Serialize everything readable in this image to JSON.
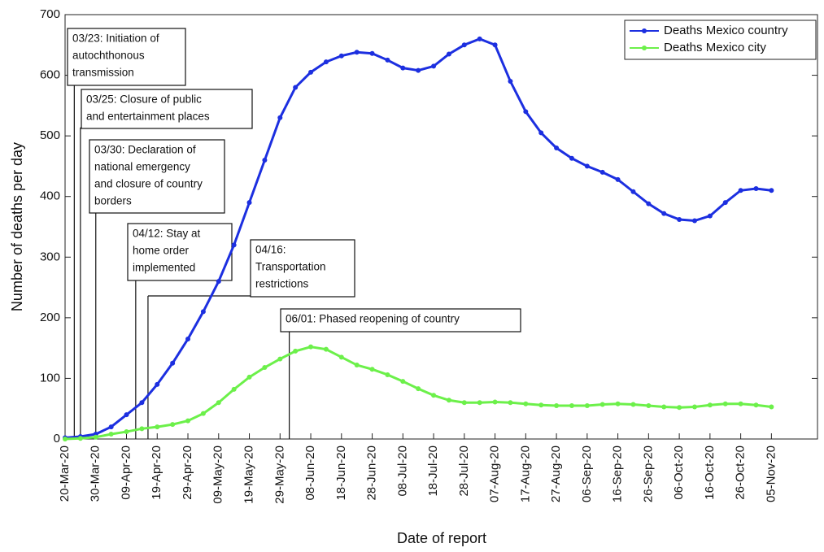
{
  "chart_data": {
    "type": "line",
    "x_label": "Date of report",
    "y_label": "Number of deaths per day",
    "x": [
      "2020-03-20",
      "2020-03-25",
      "2020-03-30",
      "2020-04-04",
      "2020-04-09",
      "2020-04-14",
      "2020-04-19",
      "2020-04-24",
      "2020-04-29",
      "2020-05-04",
      "2020-05-09",
      "2020-05-14",
      "2020-05-19",
      "2020-05-24",
      "2020-05-29",
      "2020-06-03",
      "2020-06-08",
      "2020-06-13",
      "2020-06-18",
      "2020-06-23",
      "2020-06-28",
      "2020-07-03",
      "2020-07-08",
      "2020-07-13",
      "2020-07-18",
      "2020-07-23",
      "2020-07-28",
      "2020-08-02",
      "2020-08-07",
      "2020-08-12",
      "2020-08-17",
      "2020-08-22",
      "2020-08-27",
      "2020-09-01",
      "2020-09-06",
      "2020-09-11",
      "2020-09-16",
      "2020-09-21",
      "2020-09-26",
      "2020-10-01",
      "2020-10-06",
      "2020-10-11",
      "2020-10-16",
      "2020-10-21",
      "2020-10-26",
      "2020-10-31",
      "2020-11-05"
    ],
    "series": [
      {
        "name": "Deaths Mexico country",
        "color": "#1c2fe0",
        "values": [
          2,
          4,
          8,
          20,
          40,
          60,
          90,
          125,
          165,
          210,
          260,
          320,
          390,
          460,
          530,
          580,
          605,
          622,
          632,
          638,
          636,
          625,
          612,
          608,
          615,
          635,
          650,
          660,
          650,
          590,
          540,
          505,
          480,
          463,
          450,
          440,
          428,
          408,
          388,
          372,
          362,
          360,
          368,
          390,
          410,
          413,
          410
        ]
      },
      {
        "name": "Deaths Mexico city",
        "color": "#6cf04a",
        "values": [
          0,
          1,
          3,
          8,
          12,
          17,
          20,
          24,
          30,
          42,
          60,
          82,
          102,
          118,
          132,
          145,
          152,
          148,
          135,
          122,
          115,
          106,
          95,
          83,
          72,
          64,
          60,
          60,
          61,
          60,
          58,
          56,
          55,
          55,
          55,
          57,
          58,
          57,
          55,
          53,
          52,
          53,
          56,
          58,
          58,
          56,
          53
        ]
      }
    ],
    "xlim": [
      "2020-03-20",
      "2020-11-20"
    ],
    "xticks": [
      {
        "value": "2020-03-20",
        "label": "20-Mar-20"
      },
      {
        "value": "2020-03-30",
        "label": "30-Mar-20"
      },
      {
        "value": "2020-04-09",
        "label": "09-Apr-20"
      },
      {
        "value": "2020-04-19",
        "label": "19-Apr-20"
      },
      {
        "value": "2020-04-29",
        "label": "29-Apr-20"
      },
      {
        "value": "2020-05-09",
        "label": "09-May-20"
      },
      {
        "value": "2020-05-19",
        "label": "19-May-20"
      },
      {
        "value": "2020-05-29",
        "label": "29-May-20"
      },
      {
        "value": "2020-06-08",
        "label": "08-Jun-20"
      },
      {
        "value": "2020-06-18",
        "label": "18-Jun-20"
      },
      {
        "value": "2020-06-28",
        "label": "28-Jun-20"
      },
      {
        "value": "2020-07-08",
        "label": "08-Jul-20"
      },
      {
        "value": "2020-07-18",
        "label": "18-Jul-20"
      },
      {
        "value": "2020-07-28",
        "label": "28-Jul-20"
      },
      {
        "value": "2020-08-07",
        "label": "07-Aug-20"
      },
      {
        "value": "2020-08-17",
        "label": "17-Aug-20"
      },
      {
        "value": "2020-08-27",
        "label": "27-Aug-20"
      },
      {
        "value": "2020-09-06",
        "label": "06-Sep-20"
      },
      {
        "value": "2020-09-16",
        "label": "16-Sep-20"
      },
      {
        "value": "2020-09-26",
        "label": "26-Sep-20"
      },
      {
        "value": "2020-10-06",
        "label": "06-Oct-20"
      },
      {
        "value": "2020-10-16",
        "label": "16-Oct-20"
      },
      {
        "value": "2020-10-26",
        "label": "26-Oct-20"
      },
      {
        "value": "2020-11-05",
        "label": "05-Nov-20"
      }
    ],
    "ylim": [
      0,
      700
    ],
    "yticks": [
      0,
      100,
      200,
      300,
      400,
      500,
      600,
      700
    ],
    "legend": "top-right",
    "annotations": [
      {
        "date": "2020-03-23",
        "lines": [
          "03/23: Initiation of",
          "autochthonous",
          "transmission"
        ]
      },
      {
        "date": "2020-03-25",
        "lines": [
          "03/25: Closure of public",
          "and entertainment places"
        ]
      },
      {
        "date": "2020-03-30",
        "lines": [
          "03/30: Declaration of",
          "national emergency",
          "and closure of country",
          "borders"
        ]
      },
      {
        "date": "2020-04-12",
        "lines": [
          "04/12: Stay at",
          "home order",
          "implemented"
        ]
      },
      {
        "date": "2020-04-16",
        "lines": [
          "04/16:",
          "Transportation",
          "restrictions"
        ]
      },
      {
        "date": "2020-06-01",
        "lines": [
          "06/01: Phased reopening of country"
        ]
      }
    ]
  }
}
